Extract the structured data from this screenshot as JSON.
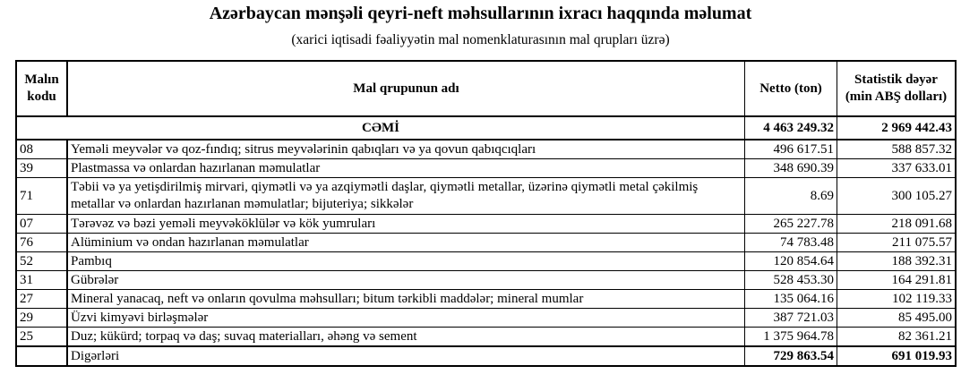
{
  "title": "Azərbaycan mənşəli qeyri-neft məhsullarının ixracı haqqında məlumat",
  "subtitle": "(xarici iqtisadi fəaliyyətin mal nomenklaturasının mal qrupları üzrə)",
  "headers": {
    "code": "Malın kodu",
    "name": "Mal qrupunun adı",
    "netto": "Netto (ton)",
    "value": "Statistik dəyər (min ABŞ dolları)"
  },
  "total": {
    "label": "CƏMİ",
    "netto": "4 463 249.32",
    "value": "2 969 442.43"
  },
  "rows": [
    {
      "code": "08",
      "name": "Yeməli  meyvələr və qoz-fındıq; sitrus  meyvələrinin qabıqları və ya qovun qabıqcıqları",
      "netto": "496 617.51",
      "value": "588 857.32"
    },
    {
      "code": "39",
      "name": "Plastmassa və onlardan hazırlanan məmulatlar",
      "netto": "348 690.39",
      "value": "337 633.01"
    },
    {
      "code": "71",
      "name": "Təbii və ya yetişdirilmiş mirvari, qiymətli və ya azqiymətli  daşlar, qiymətli metallar, üzərinə qiymətli metal çəkilmiş metallar və onlardan hazırlanan məmulatlar; bijuteriya; sikkələr",
      "netto": "8.69",
      "value": "300 105.27"
    },
    {
      "code": "07",
      "name": "Tərəvəz və  bəzi  yeməli  meyvəköklülər  və  kök yumruları",
      "netto": "265 227.78",
      "value": "218 091.68"
    },
    {
      "code": "76",
      "name": "Alüminium və ondan hazırlanan məmulatlar",
      "netto": "74 783.48",
      "value": "211 075.57"
    },
    {
      "code": "52",
      "name": "Pambıq",
      "netto": "120 854.64",
      "value": "188 392.31"
    },
    {
      "code": "31",
      "name": "Gübrələr",
      "netto": "528 453.30",
      "value": "164 291.81"
    },
    {
      "code": "27",
      "name": "Mineral yanacaq, neft və onların qovulma  məhsulları; bitum tərkibli maddələr;  mineral mumlar",
      "netto": "135 064.16",
      "value": "102 119.33"
    },
    {
      "code": "29",
      "name": "Üzvi kimyəvi birləşmələr",
      "netto": "387 721.03",
      "value": "85 495.00"
    },
    {
      "code": "25",
      "name": "Duz; kükürd; torpaq və daş; suvaq materialları,  əhəng və sement",
      "netto": "1 375 964.78",
      "value": "82 361.21"
    }
  ],
  "other": {
    "code": "",
    "name": "Digərləri",
    "netto": "729 863.54",
    "value": "691 019.93"
  }
}
